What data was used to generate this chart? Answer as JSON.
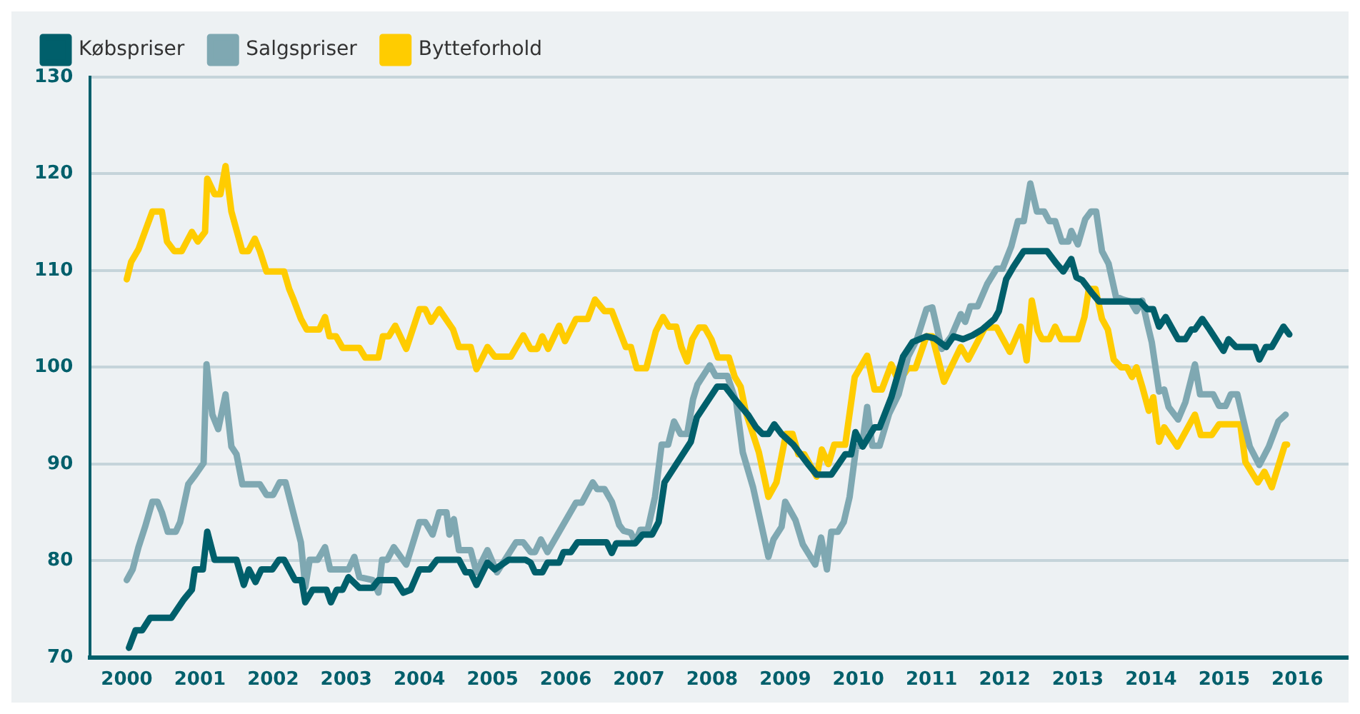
{
  "chart_data": {
    "type": "line",
    "xlim": [
      1999.5,
      2016.7
    ],
    "xticks": [
      2000,
      2001,
      2002,
      2003,
      2004,
      2005,
      2006,
      2007,
      2008,
      2009,
      2010,
      2011,
      2012,
      2013,
      2014,
      2015,
      2016
    ],
    "ylim": [
      70,
      130
    ],
    "yticks": [
      70,
      80,
      90,
      100,
      110,
      120,
      130
    ],
    "grid": "y",
    "legend": "top left",
    "marker": "none",
    "line_style": "solid",
    "series": [
      {
        "name": "Købspriser",
        "color": "#005f6b",
        "x": [
          2000.03,
          2000.12,
          2000.21,
          2000.32,
          2000.61,
          2000.78,
          2000.89,
          2000.93,
          2001.04,
          2001.1,
          2001.2,
          2001.5,
          2001.6,
          2001.67,
          2001.76,
          2001.84,
          2001.99,
          2002.08,
          2002.15,
          2002.3,
          2002.39,
          2002.44,
          2002.54,
          2002.73,
          2002.79,
          2002.87,
          2002.95,
          2003.03,
          2003.18,
          2003.36,
          2003.44,
          2003.67,
          2003.78,
          2003.88,
          2004.0,
          2004.14,
          2004.24,
          2004.54,
          2004.63,
          2004.7,
          2004.78,
          2004.93,
          2005.03,
          2005.22,
          2005.45,
          2005.52,
          2005.58,
          2005.68,
          2005.75,
          2005.91,
          2005.97,
          2006.07,
          2006.16,
          2006.56,
          2006.63,
          2006.69,
          2006.95,
          2007.05,
          2007.18,
          2007.27,
          2007.35,
          2007.71,
          2007.79,
          2008.07,
          2008.18,
          2008.29,
          2008.49,
          2008.6,
          2008.69,
          2008.77,
          2008.85,
          2008.95,
          2009.11,
          2009.31,
          2009.43,
          2009.63,
          2009.82,
          2009.9,
          2009.96,
          2010.06,
          2010.22,
          2010.29,
          2010.45,
          2010.61,
          2010.74,
          2010.93,
          2011.04,
          2011.2,
          2011.3,
          2011.43,
          2011.56,
          2011.69,
          2011.86,
          2011.92,
          2012.02,
          2012.12,
          2012.26,
          2012.58,
          2012.71,
          2012.8,
          2012.91,
          2012.98,
          2013.06,
          2013.2,
          2013.29,
          2013.85,
          2013.95,
          2014.03,
          2014.11,
          2014.2,
          2014.37,
          2014.47,
          2014.55,
          2014.6,
          2014.7,
          2014.8,
          2014.99,
          2015.06,
          2015.16,
          2015.42,
          2015.48,
          2015.57,
          2015.65,
          2015.81,
          2015.89
        ],
        "values": [
          71.0,
          72.8,
          72.8,
          74.1,
          74.1,
          76.0,
          77.0,
          79.1,
          79.1,
          83.0,
          80.1,
          80.1,
          77.5,
          79.1,
          77.8,
          79.1,
          79.1,
          80.1,
          80.1,
          78.0,
          78.0,
          75.7,
          77.0,
          77.0,
          75.7,
          77.0,
          77.0,
          78.3,
          77.2,
          77.2,
          78.0,
          78.0,
          76.7,
          77.0,
          79.1,
          79.1,
          80.1,
          80.1,
          78.8,
          78.8,
          77.5,
          79.8,
          79.1,
          80.1,
          80.1,
          79.8,
          78.8,
          78.8,
          79.8,
          79.8,
          80.9,
          80.9,
          81.9,
          81.9,
          80.8,
          81.8,
          81.8,
          82.7,
          82.7,
          84.0,
          88.1,
          92.3,
          94.8,
          98.0,
          98.0,
          96.9,
          95.1,
          93.8,
          93.1,
          93.1,
          94.1,
          93.1,
          92.0,
          90.0,
          88.9,
          88.9,
          91.0,
          91.0,
          93.3,
          91.8,
          93.8,
          93.8,
          96.9,
          101.1,
          102.6,
          103.2,
          103.0,
          102.1,
          103.2,
          102.9,
          103.3,
          103.9,
          105.0,
          105.8,
          109.1,
          110.4,
          112.0,
          112.0,
          110.7,
          109.9,
          111.2,
          109.3,
          109.0,
          107.6,
          106.8,
          106.8,
          106.0,
          106.0,
          104.2,
          105.2,
          102.9,
          102.9,
          103.9,
          103.9,
          105.0,
          103.9,
          101.7,
          102.9,
          102.1,
          102.1,
          100.8,
          102.1,
          102.1,
          104.2,
          103.4
        ]
      },
      {
        "name": "Salgspriser",
        "color": "#7fa8b2",
        "x": [
          2000.0,
          2000.08,
          2000.16,
          2000.25,
          2000.35,
          2000.42,
          2000.48,
          2000.56,
          2000.67,
          2000.73,
          2000.84,
          2000.94,
          2001.05,
          2001.09,
          2001.17,
          2001.25,
          2001.35,
          2001.43,
          2001.5,
          2001.58,
          2001.82,
          2001.91,
          2002.0,
          2002.09,
          2002.17,
          2002.38,
          2002.44,
          2002.5,
          2002.61,
          2002.71,
          2002.78,
          2003.03,
          2003.11,
          2003.18,
          2003.36,
          2003.44,
          2003.49,
          2003.56,
          2003.65,
          2003.82,
          2004.0,
          2004.08,
          2004.18,
          2004.27,
          2004.37,
          2004.41,
          2004.47,
          2004.54,
          2004.7,
          2004.78,
          2004.93,
          2005.06,
          2005.32,
          2005.42,
          2005.52,
          2005.58,
          2005.66,
          2005.75,
          2006.14,
          2006.22,
          2006.37,
          2006.43,
          2006.53,
          2006.63,
          2006.73,
          2006.79,
          2006.89,
          2006.95,
          2007.02,
          2007.12,
          2007.22,
          2007.31,
          2007.4,
          2007.48,
          2007.57,
          2007.66,
          2007.74,
          2007.8,
          2007.97,
          2008.05,
          2008.21,
          2008.33,
          2008.42,
          2008.56,
          2008.77,
          2008.84,
          2008.95,
          2009.0,
          2009.14,
          2009.24,
          2009.41,
          2009.49,
          2009.57,
          2009.63,
          2009.72,
          2009.8,
          2009.88,
          2009.97,
          2010.05,
          2010.12,
          2010.19,
          2010.29,
          2010.42,
          2010.55,
          2010.68,
          2010.8,
          2010.93,
          2011.01,
          2011.14,
          2011.27,
          2011.4,
          2011.46,
          2011.53,
          2011.63,
          2011.76,
          2011.89,
          2011.97,
          2012.09,
          2012.18,
          2012.26,
          2012.35,
          2012.44,
          2012.54,
          2012.61,
          2012.69,
          2012.78,
          2012.87,
          2012.91,
          2013.0,
          2013.1,
          2013.18,
          2013.25,
          2013.33,
          2013.42,
          2013.52,
          2013.62,
          2013.72,
          2013.8,
          2013.88,
          2013.95,
          2014.01,
          2014.11,
          2014.18,
          2014.24,
          2014.37,
          2014.47,
          2014.6,
          2014.67,
          2014.85,
          2014.93,
          2015.02,
          2015.09,
          2015.18,
          2015.26,
          2015.35,
          2015.48,
          2015.61,
          2015.74,
          2015.84
        ],
        "values": [
          78.0,
          79.1,
          81.4,
          83.5,
          86.1,
          86.1,
          85.0,
          83.0,
          83.0,
          84.0,
          87.9,
          88.9,
          90.1,
          100.3,
          95.1,
          93.6,
          97.2,
          91.8,
          91.0,
          87.9,
          87.9,
          86.8,
          86.8,
          88.1,
          88.1,
          81.9,
          77.3,
          80.1,
          80.1,
          81.4,
          79.1,
          79.1,
          80.4,
          78.3,
          78.0,
          76.7,
          80.1,
          80.1,
          81.4,
          79.6,
          84.0,
          84.0,
          82.7,
          85.0,
          85.0,
          82.7,
          84.3,
          81.1,
          81.1,
          78.8,
          81.1,
          78.8,
          81.9,
          81.9,
          80.9,
          80.9,
          82.2,
          80.9,
          86.0,
          86.0,
          88.1,
          87.4,
          87.4,
          86.1,
          83.7,
          83.1,
          82.9,
          81.9,
          83.2,
          83.2,
          86.6,
          92.0,
          92.0,
          94.4,
          93.1,
          93.1,
          96.7,
          98.2,
          100.2,
          99.1,
          99.1,
          96.4,
          91.2,
          87.6,
          80.4,
          82.2,
          83.5,
          86.1,
          84.2,
          81.7,
          79.6,
          82.4,
          79.1,
          83.0,
          83.0,
          84.0,
          86.6,
          91.8,
          91.9,
          95.9,
          91.9,
          91.9,
          95.2,
          97.2,
          101.1,
          102.9,
          106.0,
          106.2,
          101.9,
          103.2,
          105.5,
          104.7,
          106.3,
          106.3,
          108.6,
          110.2,
          110.2,
          112.5,
          115.1,
          115.1,
          119.0,
          116.1,
          116.1,
          115.1,
          115.1,
          113.0,
          113.0,
          114.1,
          112.7,
          115.3,
          116.1,
          116.1,
          112.0,
          110.7,
          107.3,
          107.0,
          106.8,
          105.8,
          106.9,
          104.5,
          102.6,
          97.5,
          97.7,
          95.9,
          94.6,
          96.4,
          100.3,
          97.2,
          97.2,
          96.0,
          96.0,
          97.2,
          97.2,
          94.6,
          91.8,
          89.9,
          91.8,
          94.4,
          95.1
        ]
      },
      {
        "name": "Bytteforhold",
        "color": "#ffcc00",
        "x": [
          2000.0,
          2000.06,
          2000.16,
          2000.35,
          2000.48,
          2000.55,
          2000.65,
          2000.75,
          2000.89,
          2000.97,
          2001.07,
          2001.1,
          2001.2,
          2001.28,
          2001.35,
          2001.43,
          2001.58,
          2001.66,
          2001.75,
          2001.82,
          2001.91,
          2002.15,
          2002.22,
          2002.28,
          2002.38,
          2002.46,
          2002.63,
          2002.71,
          2002.77,
          2002.86,
          2002.95,
          2003.18,
          2003.26,
          2003.44,
          2003.5,
          2003.58,
          2003.67,
          2003.82,
          2004.0,
          2004.08,
          2004.16,
          2004.27,
          2004.46,
          2004.54,
          2004.7,
          2004.78,
          2004.93,
          2005.03,
          2005.25,
          2005.42,
          2005.52,
          2005.61,
          2005.68,
          2005.76,
          2005.91,
          2005.99,
          2006.14,
          2006.3,
          2006.4,
          2006.53,
          2006.63,
          2006.82,
          2006.89,
          2006.97,
          2007.1,
          2007.23,
          2007.33,
          2007.41,
          2007.51,
          2007.58,
          2007.66,
          2007.73,
          2007.82,
          2007.9,
          2007.99,
          2008.08,
          2008.23,
          2008.31,
          2008.39,
          2008.46,
          2008.64,
          2008.77,
          2008.88,
          2009.01,
          2009.1,
          2009.18,
          2009.26,
          2009.43,
          2009.5,
          2009.59,
          2009.67,
          2009.82,
          2009.95,
          2010.12,
          2010.22,
          2010.32,
          2010.45,
          2010.55,
          2010.68,
          2010.78,
          2010.93,
          2011.01,
          2011.17,
          2011.4,
          2011.5,
          2011.73,
          2011.89,
          2012.07,
          2012.22,
          2012.3,
          2012.37,
          2012.45,
          2012.51,
          2012.61,
          2012.69,
          2012.77,
          2013.0,
          2013.09,
          2013.15,
          2013.24,
          2013.33,
          2013.41,
          2013.49,
          2013.59,
          2013.67,
          2013.74,
          2013.8,
          2013.88,
          2013.97,
          2014.03,
          2014.11,
          2014.18,
          2014.36,
          2014.6,
          2014.68,
          2014.83,
          2014.93,
          2015.22,
          2015.29,
          2015.46,
          2015.55,
          2015.65,
          2015.83,
          2015.86
        ],
        "values": [
          109.1,
          110.9,
          112.2,
          116.1,
          116.1,
          113.0,
          112.0,
          112.0,
          114.0,
          113.0,
          114.0,
          119.5,
          117.9,
          117.9,
          120.8,
          116.1,
          112.0,
          112.0,
          113.3,
          112.0,
          109.9,
          109.9,
          108.1,
          107.0,
          105.0,
          103.9,
          103.9,
          105.2,
          103.2,
          103.2,
          102.0,
          102.0,
          101.0,
          101.0,
          103.2,
          103.2,
          104.3,
          101.9,
          106.0,
          106.0,
          104.7,
          106.0,
          103.9,
          102.1,
          102.1,
          99.8,
          102.1,
          101.1,
          101.1,
          103.3,
          101.9,
          101.9,
          103.2,
          101.9,
          104.3,
          102.7,
          105.0,
          105.0,
          107.0,
          105.8,
          105.8,
          102.1,
          102.1,
          99.9,
          99.9,
          103.7,
          105.2,
          104.2,
          104.2,
          102.1,
          100.6,
          102.9,
          104.1,
          104.1,
          102.9,
          101.0,
          101.0,
          99.0,
          98.0,
          95.4,
          91.2,
          86.6,
          88.1,
          93.1,
          93.1,
          91.0,
          91.0,
          88.7,
          91.5,
          90.0,
          92.0,
          92.0,
          99.0,
          101.2,
          97.7,
          97.7,
          100.3,
          98.5,
          99.9,
          99.9,
          103.2,
          103.2,
          98.5,
          102.1,
          100.8,
          104.1,
          104.1,
          101.6,
          104.2,
          100.7,
          106.9,
          103.8,
          102.9,
          102.9,
          104.2,
          102.9,
          102.9,
          105.2,
          108.1,
          108.1,
          105.0,
          103.9,
          100.8,
          100.0,
          100.0,
          99.0,
          100.0,
          98.0,
          95.5,
          96.9,
          92.3,
          93.8,
          91.8,
          95.1,
          93.0,
          93.0,
          94.1,
          94.1,
          90.2,
          88.1,
          89.2,
          87.6,
          92.0,
          92.0
        ]
      }
    ]
  }
}
